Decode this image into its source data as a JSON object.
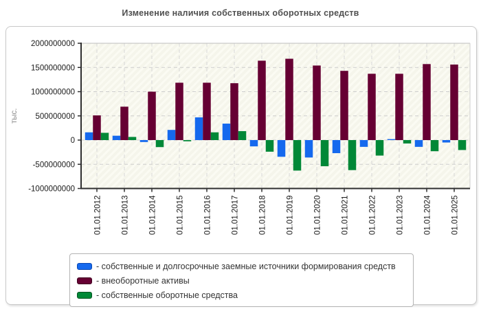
{
  "chart_data": {
    "type": "bar",
    "title": "Изменение наличия собственных оборотных средств",
    "ylabel": "тыс.",
    "xlabel": "",
    "ylim": [
      -1000000000,
      2000000000
    ],
    "ytick_step": 500000000,
    "grid": "dashed",
    "legend_position": "bottom",
    "categories": [
      "01.01.2012",
      "01.01.2013",
      "01.01.2014",
      "01.01.2015",
      "01.01.2016",
      "01.01.2017",
      "01.01.2018",
      "01.01.2019",
      "01.01.2020",
      "01.01.2021",
      "01.01.2022",
      "01.01.2023",
      "01.01.2024",
      "01.01.2025"
    ],
    "series": [
      {
        "name": "- собственные и долгосрочные заемные источники формирования средств",
        "color": "#1569ee",
        "swatch_border": "#0b47b0",
        "values": [
          160000000,
          90000000,
          -40000000,
          210000000,
          470000000,
          340000000,
          -130000000,
          -345000000,
          -360000000,
          -270000000,
          -140000000,
          20000000,
          -140000000,
          -50000000
        ]
      },
      {
        "name": "- внеоборотные активы",
        "color": "#660033",
        "swatch_border": "#3f001f",
        "values": [
          510000000,
          690000000,
          1000000000,
          1185000000,
          1185000000,
          1175000000,
          1640000000,
          1680000000,
          1540000000,
          1430000000,
          1370000000,
          1370000000,
          1570000000,
          1560000000
        ]
      },
      {
        "name": "- собственные оборотные средства",
        "color": "#018837",
        "swatch_border": "#00521f",
        "values": [
          150000000,
          65000000,
          -145000000,
          -25000000,
          160000000,
          185000000,
          -240000000,
          -630000000,
          -540000000,
          -620000000,
          -320000000,
          -70000000,
          -230000000,
          -205000000
        ]
      }
    ]
  }
}
